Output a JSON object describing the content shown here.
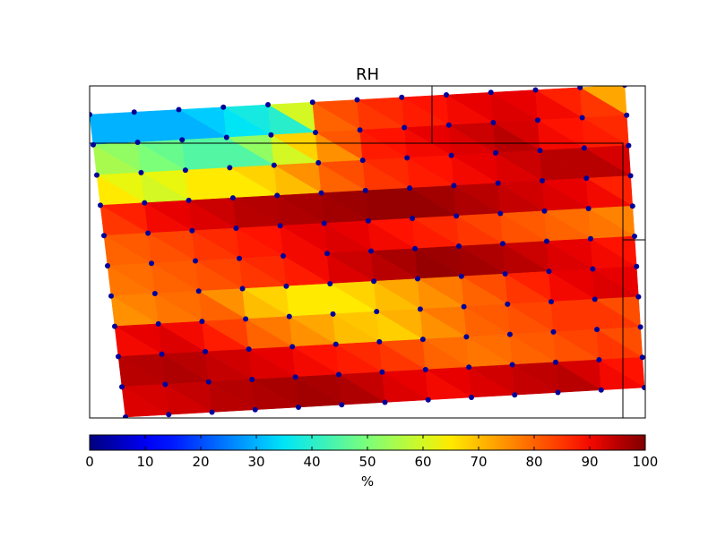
{
  "chart_data": {
    "type": "heatmap",
    "title": "RH",
    "colorbar": {
      "label": "%",
      "min": 0,
      "max": 100,
      "ticks": [
        "0",
        "10",
        "20",
        "30",
        "40",
        "50",
        "60",
        "70",
        "80",
        "90",
        "100"
      ],
      "colormap": "jet"
    },
    "grid_rows": 10,
    "grid_cols": 13,
    "cell_values": [
      [
        30,
        30,
        30,
        35,
        40,
        80,
        85,
        88,
        90,
        92,
        90,
        85,
        60
      ],
      [
        55,
        50,
        45,
        45,
        60,
        75,
        88,
        90,
        92,
        95,
        90,
        88,
        85
      ],
      [
        65,
        60,
        65,
        65,
        70,
        80,
        85,
        88,
        90,
        92,
        95,
        95,
        90
      ],
      [
        85,
        90,
        92,
        95,
        96,
        97,
        98,
        98,
        96,
        94,
        92,
        90,
        85
      ],
      [
        80,
        82,
        85,
        88,
        90,
        92,
        90,
        88,
        85,
        82,
        80,
        78,
        75
      ],
      [
        78,
        80,
        82,
        85,
        88,
        92,
        95,
        98,
        97,
        95,
        92,
        90,
        88
      ],
      [
        75,
        78,
        80,
        70,
        65,
        65,
        70,
        75,
        80,
        85,
        90,
        92,
        90
      ],
      [
        90,
        92,
        88,
        80,
        75,
        70,
        68,
        75,
        80,
        82,
        85,
        85,
        80
      ],
      [
        95,
        96,
        94,
        92,
        90,
        88,
        85,
        80,
        78,
        80,
        82,
        85,
        80
      ],
      [
        92,
        93,
        95,
        96,
        97,
        96,
        92,
        90,
        92,
        94,
        95,
        90,
        88
      ]
    ],
    "marker_color": "#000099"
  }
}
